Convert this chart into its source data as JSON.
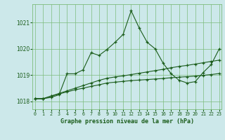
{
  "title": "Graphe pression niveau de la mer (hPa)",
  "x_hours": [
    0,
    1,
    2,
    3,
    4,
    5,
    6,
    7,
    8,
    9,
    10,
    11,
    12,
    13,
    14,
    15,
    16,
    17,
    18,
    19,
    20,
    21,
    22,
    23
  ],
  "line1": [
    1018.1,
    1018.1,
    1018.15,
    1018.25,
    1019.05,
    1019.05,
    1019.2,
    1019.85,
    1019.75,
    1019.98,
    1020.25,
    1020.55,
    1021.45,
    1020.8,
    1020.25,
    1020.0,
    1019.45,
    1019.05,
    1018.8,
    1018.7,
    1018.75,
    1019.1,
    1019.4,
    1020.0
  ],
  "line2": [
    1018.1,
    1018.1,
    1018.2,
    1018.3,
    1018.4,
    1018.5,
    1018.6,
    1018.7,
    1018.8,
    1018.88,
    1018.93,
    1018.97,
    1019.02,
    1019.07,
    1019.12,
    1019.17,
    1019.22,
    1019.28,
    1019.33,
    1019.37,
    1019.42,
    1019.47,
    1019.52,
    1019.57
  ],
  "line3": [
    1018.1,
    1018.1,
    1018.2,
    1018.28,
    1018.36,
    1018.44,
    1018.5,
    1018.57,
    1018.63,
    1018.7,
    1018.73,
    1018.76,
    1018.79,
    1018.81,
    1018.83,
    1018.85,
    1018.87,
    1018.9,
    1018.92,
    1018.94,
    1018.96,
    1018.99,
    1019.02,
    1019.06
  ],
  "line_color": "#1a5c1a",
  "bg_color": "#cce8ea",
  "grid_color": "#7cbc7c",
  "ylim": [
    1017.7,
    1021.7
  ],
  "yticks": [
    1018,
    1019,
    1020,
    1021
  ],
  "xlim": [
    -0.3,
    23.3
  ]
}
